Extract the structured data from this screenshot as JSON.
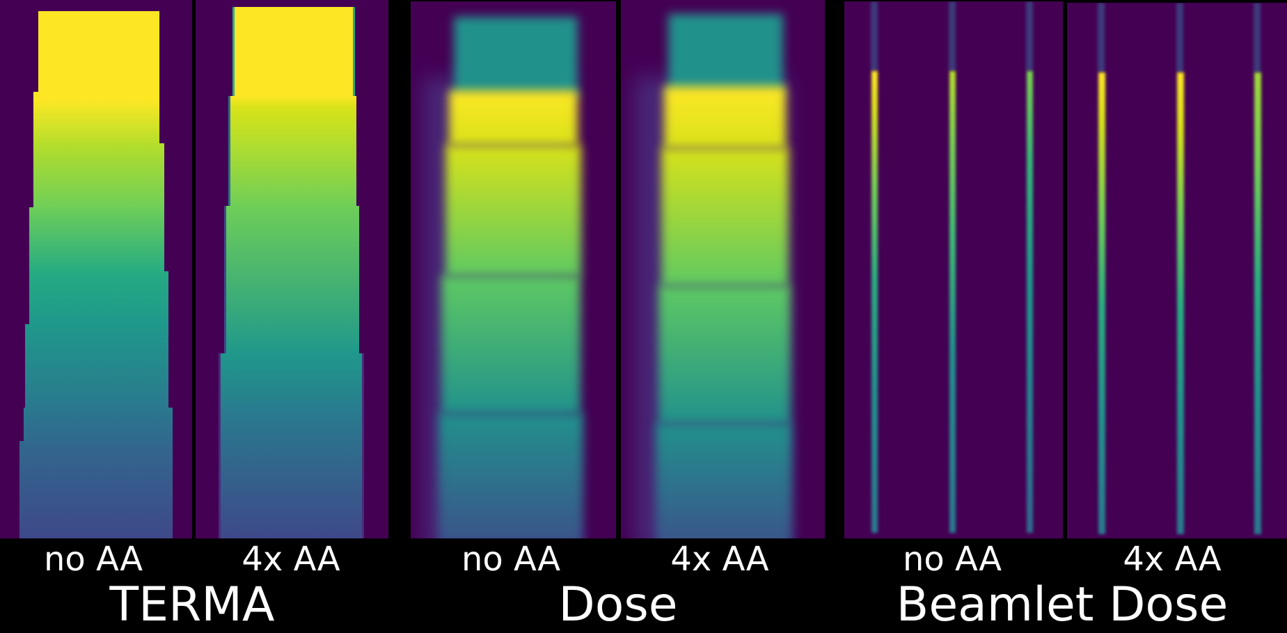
{
  "groups": [
    {
      "title": "TERMA",
      "subpanels": [
        {
          "label": "no AA"
        },
        {
          "label": "4x AA"
        }
      ]
    },
    {
      "title": "Dose",
      "subpanels": [
        {
          "label": "no AA"
        },
        {
          "label": "4x AA"
        }
      ]
    },
    {
      "title": "Beamlet Dose",
      "subpanels": [
        {
          "label": "no AA"
        },
        {
          "label": "4x AA"
        }
      ]
    }
  ],
  "colors": {
    "background": "#000000",
    "colormap": "viridis",
    "low": "#440154",
    "high": "#fde725"
  }
}
